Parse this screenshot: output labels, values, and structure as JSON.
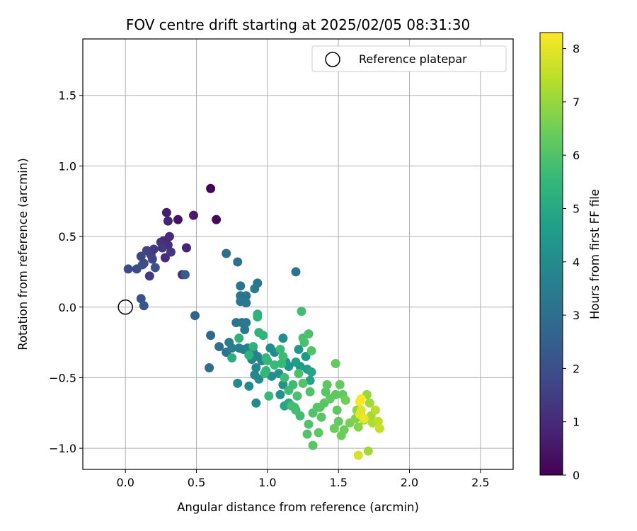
{
  "chart_data": {
    "type": "scatter",
    "title": "FOV centre drift starting at 2025/02/05 08:31:30",
    "xlabel": "Angular distance from reference (arcmin)",
    "ylabel": "Rotation from reference (arcmin)",
    "xlim": [
      -0.3,
      2.73
    ],
    "ylim": [
      -1.15,
      1.9
    ],
    "xticks": [
      0.0,
      0.5,
      1.0,
      1.5,
      2.0,
      2.5
    ],
    "xtick_labels": [
      "0.0",
      "0.5",
      "1.0",
      "1.5",
      "2.0",
      "2.5"
    ],
    "yticks": [
      -1.0,
      -0.5,
      0.0,
      0.5,
      1.0,
      1.5
    ],
    "ytick_labels": [
      "−1.0",
      "−0.5",
      "0.0",
      "0.5",
      "1.0",
      "1.5"
    ],
    "grid": true,
    "legend": {
      "placement": "top-right",
      "entries": [
        "Reference platepar"
      ]
    },
    "reference_point": {
      "x": 0.0,
      "y": 0.0,
      "label": "Reference platepar"
    },
    "colorbar": {
      "label": "Hours from first FF file",
      "colormap": "viridis",
      "range": [
        0,
        8.3
      ],
      "ticks": [
        0,
        1,
        2,
        3,
        4,
        5,
        6,
        7,
        8
      ],
      "tick_labels": [
        "0",
        "1",
        "2",
        "3",
        "4",
        "5",
        "6",
        "7",
        "8"
      ]
    },
    "points": [
      {
        "x": 0.6,
        "y": 0.84,
        "t": 0.1
      },
      {
        "x": 0.64,
        "y": 0.62,
        "t": 0.2
      },
      {
        "x": 0.37,
        "y": 0.62,
        "t": 0.4
      },
      {
        "x": 0.48,
        "y": 0.65,
        "t": 0.6
      },
      {
        "x": 0.29,
        "y": 0.67,
        "t": 0.7
      },
      {
        "x": 0.3,
        "y": 0.61,
        "t": 0.8
      },
      {
        "x": 0.43,
        "y": 0.42,
        "t": 0.8
      },
      {
        "x": 0.27,
        "y": 0.47,
        "t": 0.9
      },
      {
        "x": 0.31,
        "y": 0.5,
        "t": 1.0
      },
      {
        "x": 0.28,
        "y": 0.35,
        "t": 1.0
      },
      {
        "x": 0.3,
        "y": 0.44,
        "t": 1.1
      },
      {
        "x": 0.4,
        "y": 0.23,
        "t": 1.1
      },
      {
        "x": 0.25,
        "y": 0.46,
        "t": 1.2
      },
      {
        "x": 0.26,
        "y": 0.42,
        "t": 1.3
      },
      {
        "x": 0.32,
        "y": 0.39,
        "t": 1.3
      },
      {
        "x": 0.2,
        "y": 0.41,
        "t": 1.4
      },
      {
        "x": 0.17,
        "y": 0.22,
        "t": 1.4
      },
      {
        "x": 0.18,
        "y": 0.37,
        "t": 1.5
      },
      {
        "x": 0.15,
        "y": 0.4,
        "t": 1.6
      },
      {
        "x": 0.11,
        "y": 0.36,
        "t": 1.7
      },
      {
        "x": 0.19,
        "y": 0.34,
        "t": 1.7
      },
      {
        "x": 0.13,
        "y": 0.31,
        "t": 1.8
      },
      {
        "x": 0.08,
        "y": 0.27,
        "t": 1.9
      },
      {
        "x": 0.02,
        "y": 0.27,
        "t": 1.9
      },
      {
        "x": 0.12,
        "y": 0.3,
        "t": 2.0
      },
      {
        "x": 0.21,
        "y": 0.28,
        "t": 2.1
      },
      {
        "x": 0.11,
        "y": 0.06,
        "t": 2.1
      },
      {
        "x": 0.13,
        "y": 0.01,
        "t": 2.2
      },
      {
        "x": 0.42,
        "y": 0.23,
        "t": 2.4
      },
      {
        "x": 0.49,
        "y": -0.06,
        "t": 2.6
      },
      {
        "x": 0.6,
        "y": -0.2,
        "t": 2.8
      },
      {
        "x": 0.59,
        "y": -0.43,
        "t": 2.9
      },
      {
        "x": 0.71,
        "y": 0.38,
        "t": 3.0
      },
      {
        "x": 0.66,
        "y": -0.28,
        "t": 3.0
      },
      {
        "x": 0.79,
        "y": 0.32,
        "t": 3.1
      },
      {
        "x": 0.71,
        "y": -0.32,
        "t": 3.2
      },
      {
        "x": 0.81,
        "y": 0.15,
        "t": 3.2
      },
      {
        "x": 0.81,
        "y": 0.08,
        "t": 3.2
      },
      {
        "x": 0.85,
        "y": 0.08,
        "t": 3.2
      },
      {
        "x": 0.81,
        "y": 0.04,
        "t": 3.3
      },
      {
        "x": 0.85,
        "y": 0.03,
        "t": 3.3
      },
      {
        "x": 0.78,
        "y": -0.11,
        "t": 3.3
      },
      {
        "x": 0.82,
        "y": -0.11,
        "t": 3.3
      },
      {
        "x": 0.85,
        "y": -0.11,
        "t": 3.4
      },
      {
        "x": 0.84,
        "y": -0.16,
        "t": 3.4
      },
      {
        "x": 0.91,
        "y": 0.13,
        "t": 3.4
      },
      {
        "x": 0.93,
        "y": 0.17,
        "t": 3.3
      },
      {
        "x": 1.2,
        "y": 0.25,
        "t": 3.2
      },
      {
        "x": 0.73,
        "y": -0.25,
        "t": 3.5
      },
      {
        "x": 0.75,
        "y": -0.29,
        "t": 3.5
      },
      {
        "x": 0.8,
        "y": -0.29,
        "t": 3.6
      },
      {
        "x": 0.83,
        "y": -0.3,
        "t": 3.6
      },
      {
        "x": 0.86,
        "y": -0.29,
        "t": 3.7
      },
      {
        "x": 0.9,
        "y": -0.32,
        "t": 3.7
      },
      {
        "x": 0.93,
        "y": -0.35,
        "t": 3.7
      },
      {
        "x": 0.96,
        "y": -0.38,
        "t": 3.8
      },
      {
        "x": 0.89,
        "y": -0.37,
        "t": 3.8
      },
      {
        "x": 0.92,
        "y": -0.43,
        "t": 3.8
      },
      {
        "x": 0.91,
        "y": -0.48,
        "t": 3.9
      },
      {
        "x": 0.94,
        "y": -0.51,
        "t": 3.9
      },
      {
        "x": 0.79,
        "y": -0.54,
        "t": 3.9
      },
      {
        "x": 0.87,
        "y": -0.56,
        "t": 4.0
      },
      {
        "x": 0.92,
        "y": -0.68,
        "t": 4.0
      },
      {
        "x": 1.02,
        "y": -0.29,
        "t": 4.0
      },
      {
        "x": 1.05,
        "y": -0.32,
        "t": 4.0
      },
      {
        "x": 1.11,
        "y": -0.22,
        "t": 4.1
      },
      {
        "x": 1.03,
        "y": -0.49,
        "t": 4.1
      },
      {
        "x": 1.08,
        "y": -0.47,
        "t": 4.2
      },
      {
        "x": 1.11,
        "y": -0.55,
        "t": 4.2
      },
      {
        "x": 1.09,
        "y": -0.62,
        "t": 4.2
      },
      {
        "x": 1.15,
        "y": -0.42,
        "t": 4.3
      },
      {
        "x": 1.13,
        "y": -0.39,
        "t": 4.3
      },
      {
        "x": 1.22,
        "y": -0.3,
        "t": 4.4
      },
      {
        "x": 1.23,
        "y": -0.42,
        "t": 4.5
      },
      {
        "x": 1.27,
        "y": -0.35,
        "t": 4.5
      },
      {
        "x": 1.2,
        "y": -0.39,
        "t": 4.6
      },
      {
        "x": 1.28,
        "y": -0.44,
        "t": 4.6
      },
      {
        "x": 1.31,
        "y": -0.46,
        "t": 4.8
      },
      {
        "x": 1.3,
        "y": -0.52,
        "t": 4.8
      },
      {
        "x": 1.12,
        "y": -0.7,
        "t": 4.9
      },
      {
        "x": 1.15,
        "y": -0.68,
        "t": 5.0
      },
      {
        "x": 0.75,
        "y": -0.36,
        "t": 5.2
      },
      {
        "x": 0.8,
        "y": -0.22,
        "t": 5.3
      },
      {
        "x": 0.87,
        "y": -0.34,
        "t": 5.3
      },
      {
        "x": 0.9,
        "y": -0.28,
        "t": 5.3
      },
      {
        "x": 0.93,
        "y": -0.05,
        "t": 5.3
      },
      {
        "x": 0.93,
        "y": -0.07,
        "t": 5.4
      },
      {
        "x": 0.94,
        "y": -0.18,
        "t": 5.4
      },
      {
        "x": 0.97,
        "y": -0.2,
        "t": 5.4
      },
      {
        "x": 0.99,
        "y": -0.36,
        "t": 5.4
      },
      {
        "x": 1.0,
        "y": -0.38,
        "t": 5.5
      },
      {
        "x": 0.99,
        "y": -0.45,
        "t": 5.5
      },
      {
        "x": 0.98,
        "y": -0.47,
        "t": 5.5
      },
      {
        "x": 1.01,
        "y": -0.63,
        "t": 5.6
      },
      {
        "x": 1.05,
        "y": -0.41,
        "t": 5.6
      },
      {
        "x": 1.09,
        "y": -0.3,
        "t": 5.6
      },
      {
        "x": 1.11,
        "y": -0.35,
        "t": 5.7
      },
      {
        "x": 1.12,
        "y": -0.5,
        "t": 5.7
      },
      {
        "x": 1.18,
        "y": -0.55,
        "t": 5.7
      },
      {
        "x": 1.17,
        "y": -0.7,
        "t": 5.8
      },
      {
        "x": 1.19,
        "y": -0.71,
        "t": 5.8
      },
      {
        "x": 1.2,
        "y": -0.73,
        "t": 5.8
      },
      {
        "x": 1.23,
        "y": -0.77,
        "t": 5.8
      },
      {
        "x": 1.24,
        "y": -0.03,
        "t": 5.8
      },
      {
        "x": 1.25,
        "y": -0.22,
        "t": 5.9
      },
      {
        "x": 1.26,
        "y": -0.25,
        "t": 5.9
      },
      {
        "x": 1.29,
        "y": -0.19,
        "t": 5.9
      },
      {
        "x": 1.31,
        "y": -0.31,
        "t": 6.0
      },
      {
        "x": 1.3,
        "y": -0.6,
        "t": 6.0
      },
      {
        "x": 1.32,
        "y": -0.75,
        "t": 6.0
      },
      {
        "x": 1.29,
        "y": -0.83,
        "t": 6.0
      },
      {
        "x": 1.35,
        "y": -0.71,
        "t": 6.1
      },
      {
        "x": 1.37,
        "y": -0.71,
        "t": 6.1
      },
      {
        "x": 1.38,
        "y": -0.78,
        "t": 6.1
      },
      {
        "x": 1.4,
        "y": -0.68,
        "t": 6.1
      },
      {
        "x": 1.41,
        "y": -0.6,
        "t": 6.1
      },
      {
        "x": 1.42,
        "y": -0.55,
        "t": 6.2
      },
      {
        "x": 1.44,
        "y": -0.65,
        "t": 6.2
      },
      {
        "x": 1.48,
        "y": -0.62,
        "t": 6.2
      },
      {
        "x": 1.49,
        "y": -0.73,
        "t": 6.2
      },
      {
        "x": 1.5,
        "y": -0.81,
        "t": 6.3
      },
      {
        "x": 1.51,
        "y": -0.55,
        "t": 6.3
      },
      {
        "x": 1.53,
        "y": -0.62,
        "t": 6.3
      },
      {
        "x": 1.48,
        "y": -0.4,
        "t": 6.3
      },
      {
        "x": 1.47,
        "y": -0.86,
        "t": 6.4
      },
      {
        "x": 1.52,
        "y": -0.91,
        "t": 6.4
      },
      {
        "x": 1.54,
        "y": -0.87,
        "t": 6.4
      },
      {
        "x": 1.36,
        "y": -0.89,
        "t": 6.2
      },
      {
        "x": 1.32,
        "y": -0.98,
        "t": 6.1
      },
      {
        "x": 1.28,
        "y": -0.9,
        "t": 6.0
      },
      {
        "x": 1.15,
        "y": -0.59,
        "t": 5.7
      },
      {
        "x": 1.1,
        "y": -0.4,
        "t": 5.6
      },
      {
        "x": 1.22,
        "y": -0.47,
        "t": 5.9
      },
      {
        "x": 1.25,
        "y": -0.54,
        "t": 6.0
      },
      {
        "x": 1.21,
        "y": -0.63,
        "t": 5.9
      },
      {
        "x": 1.55,
        "y": -0.66,
        "t": 6.5
      },
      {
        "x": 1.58,
        "y": -0.82,
        "t": 6.6
      },
      {
        "x": 1.62,
        "y": -0.79,
        "t": 6.7
      },
      {
        "x": 1.63,
        "y": -0.73,
        "t": 6.8
      },
      {
        "x": 1.64,
        "y": -0.85,
        "t": 6.8
      },
      {
        "x": 1.66,
        "y": -0.77,
        "t": 6.9
      },
      {
        "x": 1.68,
        "y": -0.8,
        "t": 7.0
      },
      {
        "x": 1.7,
        "y": -0.62,
        "t": 7.0
      },
      {
        "x": 1.72,
        "y": -0.68,
        "t": 7.1
      },
      {
        "x": 1.71,
        "y": -1.02,
        "t": 7.1
      },
      {
        "x": 1.73,
        "y": -0.77,
        "t": 7.2
      },
      {
        "x": 1.74,
        "y": -0.82,
        "t": 7.3
      },
      {
        "x": 1.76,
        "y": -0.73,
        "t": 7.4
      },
      {
        "x": 1.78,
        "y": -0.81,
        "t": 7.5
      },
      {
        "x": 1.79,
        "y": -0.86,
        "t": 7.6
      },
      {
        "x": 1.66,
        "y": -0.73,
        "t": 7.9
      },
      {
        "x": 1.65,
        "y": -0.76,
        "t": 8.0
      },
      {
        "x": 1.68,
        "y": -0.79,
        "t": 8.1
      },
      {
        "x": 1.65,
        "y": -0.67,
        "t": 8.2
      },
      {
        "x": 1.66,
        "y": -0.65,
        "t": 8.3
      },
      {
        "x": 1.64,
        "y": -1.05,
        "t": 7.8
      }
    ]
  }
}
